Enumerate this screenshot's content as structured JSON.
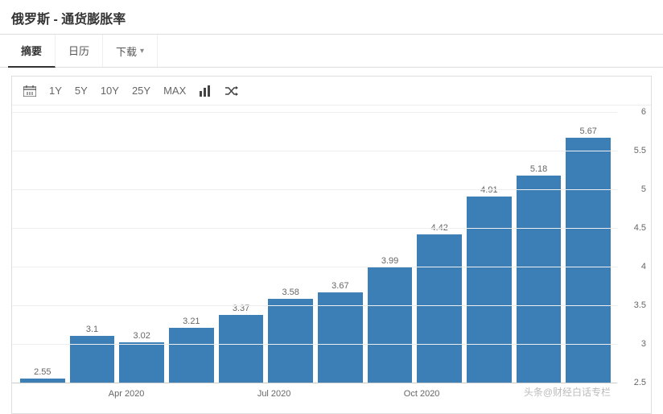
{
  "header": {
    "title": "俄罗斯 - 通货膨胀率"
  },
  "tabs": {
    "items": [
      "摘要",
      "日历",
      "下载"
    ],
    "active_index": 0
  },
  "toolbar": {
    "ranges": [
      "1Y",
      "5Y",
      "10Y",
      "25Y",
      "MAX"
    ]
  },
  "chart": {
    "type": "bar",
    "bar_color": "#3b7fb6",
    "background_color": "#ffffff",
    "grid_color": "#eeeeee",
    "baseline_color": "#cccccc",
    "label_color": "#666666",
    "label_fontsize": 11,
    "ylim": [
      2.5,
      6
    ],
    "yticks": [
      2.5,
      3,
      3.5,
      4,
      4.5,
      5,
      5.5,
      6
    ],
    "values": [
      2.55,
      3.1,
      3.02,
      3.21,
      3.37,
      3.58,
      3.67,
      3.99,
      4.42,
      4.91,
      5.18,
      5.67
    ],
    "value_labels": [
      "2.55",
      "3.1",
      "3.02",
      "3.21",
      "3.37",
      "3.58",
      "3.67",
      "3.99",
      "4.42",
      "4.91",
      "5.18",
      "5.67"
    ],
    "x_ticks": [
      {
        "label": "Apr 2020",
        "pos_pct": 18
      },
      {
        "label": "Jul 2020",
        "pos_pct": 43
      },
      {
        "label": "Oct 2020",
        "pos_pct": 68
      }
    ]
  },
  "watermark": "头条@财经白话专栏"
}
